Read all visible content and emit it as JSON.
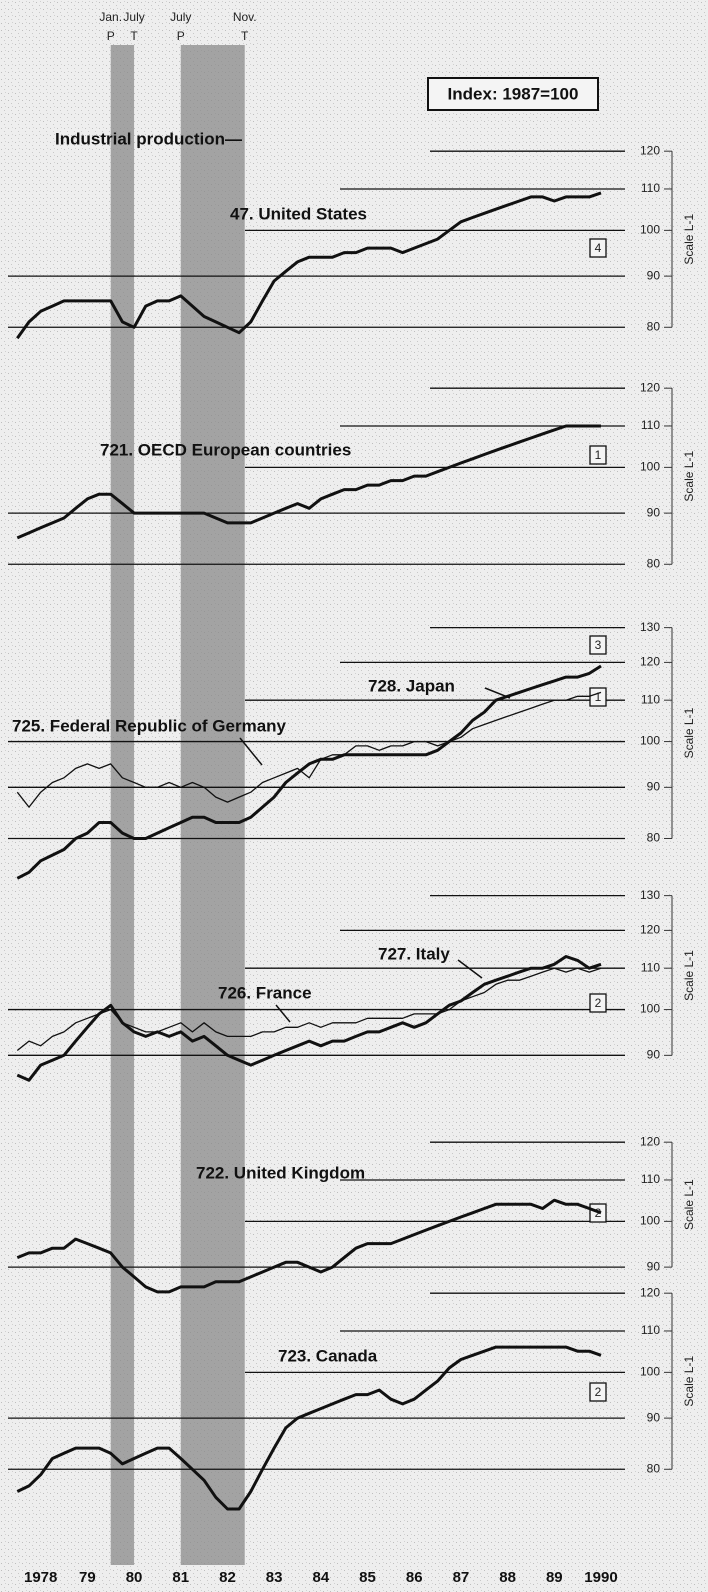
{
  "header": {
    "title": "Industrial production—",
    "index_note": "Index: 1987=100"
  },
  "x_axis": {
    "xlim": [
      1977.8,
      1990.8
    ],
    "xticks": [
      1978,
      {
        "value": 1979,
        "label": "79"
      },
      {
        "value": 1980,
        "label": "80"
      },
      {
        "value": 1981,
        "label": "81"
      },
      {
        "value": 1982,
        "label": "82"
      },
      {
        "value": 1983,
        "label": "83"
      },
      {
        "value": 1984,
        "label": "84"
      },
      {
        "value": 1985,
        "label": "85"
      },
      {
        "value": 1986,
        "label": "86"
      },
      {
        "value": 1987,
        "label": "87"
      },
      {
        "value": 1988,
        "label": "88"
      },
      {
        "value": 1989,
        "label": "89"
      },
      1990
    ],
    "recessions": [
      {
        "start": 1980.0,
        "end": 1980.5,
        "start_month": "Jan.",
        "start_code": "P",
        "end_month": "July",
        "end_code": "T"
      },
      {
        "start": 1981.5,
        "end": 1982.87,
        "start_month": "July",
        "start_code": "P",
        "end_month": "Nov.",
        "end_code": "T"
      }
    ],
    "x": [
      1978,
      1978.25,
      1978.5,
      1978.75,
      1979,
      1979.25,
      1979.5,
      1979.75,
      1980,
      1980.25,
      1980.5,
      1980.75,
      1981,
      1981.25,
      1981.5,
      1981.75,
      1982,
      1982.25,
      1982.5,
      1982.75,
      1983,
      1983.25,
      1983.5,
      1983.75,
      1984,
      1984.25,
      1984.5,
      1984.75,
      1985,
      1985.25,
      1985.5,
      1985.75,
      1986,
      1986.25,
      1986.5,
      1986.75,
      1987,
      1987.25,
      1987.5,
      1987.75,
      1988,
      1988.25,
      1988.5,
      1988.75,
      1989,
      1989.25,
      1989.5,
      1989.75,
      1990,
      1990.25,
      1990.5
    ]
  },
  "chart_data": [
    {
      "type": "line",
      "log_scale": true,
      "y_axis_label": "Scale L-1",
      "ylim": [
        76,
        122
      ],
      "yticks": [
        80,
        90,
        100,
        110,
        120
      ],
      "lag_codes": [
        "4"
      ],
      "series": [
        {
          "name": "47. United States",
          "color": "#111111",
          "line_width": "thick",
          "values": [
            78,
            81,
            83,
            84,
            85,
            85,
            85,
            85,
            85,
            81,
            80,
            84,
            85,
            85,
            86,
            84,
            82,
            81,
            80,
            79,
            81,
            85,
            89,
            91,
            93,
            94,
            94,
            94,
            95,
            95,
            96,
            96,
            96,
            95,
            96,
            97,
            98,
            100,
            102,
            103,
            104,
            105,
            106,
            107,
            108,
            108,
            107,
            108,
            108,
            108,
            109
          ]
        }
      ]
    },
    {
      "type": "line",
      "log_scale": true,
      "y_axis_label": "Scale L-1",
      "ylim": [
        83,
        122
      ],
      "yticks": [
        80,
        90,
        100,
        110,
        120
      ],
      "lag_codes": [
        "1"
      ],
      "series": [
        {
          "name": "721. OECD European countries",
          "color": "#111111",
          "line_width": "thick",
          "values": [
            85,
            86,
            87,
            88,
            89,
            91,
            93,
            94,
            94,
            92,
            90,
            90,
            90,
            90,
            90,
            90,
            90,
            89,
            88,
            88,
            88,
            89,
            90,
            91,
            92,
            91,
            93,
            94,
            95,
            95,
            96,
            96,
            97,
            97,
            98,
            98,
            99,
            100,
            101,
            102,
            103,
            104,
            105,
            106,
            107,
            108,
            109,
            110,
            110,
            110,
            110
          ]
        }
      ]
    },
    {
      "type": "line",
      "log_scale": true,
      "y_axis_label": "Scale L-1",
      "ylim": [
        72,
        132
      ],
      "yticks": [
        80,
        90,
        100,
        110,
        120,
        130
      ],
      "lag_codes": [
        "3",
        "1"
      ],
      "series": [
        {
          "name": "728. Japan",
          "color": "#111111",
          "line_width": "thick",
          "values": [
            73,
            74,
            76,
            77,
            78,
            80,
            81,
            83,
            83,
            81,
            80,
            80,
            81,
            82,
            83,
            84,
            84,
            83,
            83,
            83,
            84,
            86,
            88,
            91,
            93,
            95,
            96,
            96,
            97,
            97,
            97,
            97,
            97,
            97,
            97,
            97,
            98,
            100,
            102,
            105,
            107,
            110,
            111,
            112,
            113,
            114,
            115,
            116,
            116,
            117,
            119
          ]
        },
        {
          "name": "725. Federal Republic of Germany",
          "color": "#111111",
          "line_width": "thin",
          "values": [
            89,
            86,
            89,
            91,
            92,
            94,
            95,
            94,
            95,
            92,
            91,
            90,
            90,
            91,
            90,
            91,
            90,
            88,
            87,
            88,
            89,
            91,
            92,
            93,
            94,
            92,
            96,
            97,
            97,
            99,
            99,
            98,
            99,
            99,
            100,
            100,
            99,
            100,
            101,
            103,
            104,
            105,
            106,
            107,
            108,
            109,
            110,
            110,
            111,
            111,
            112
          ]
        }
      ]
    },
    {
      "type": "line",
      "log_scale": true,
      "y_axis_label": "Scale L-1",
      "ylim": [
        84,
        132
      ],
      "yticks": [
        90,
        100,
        110,
        120,
        130
      ],
      "lag_codes": [
        "2"
      ],
      "series": [
        {
          "name": "727. Italy",
          "color": "#111111",
          "line_width": "thick",
          "values": [
            86,
            85,
            88,
            89,
            90,
            93,
            96,
            99,
            101,
            97,
            95,
            94,
            95,
            94,
            95,
            93,
            94,
            92,
            90,
            89,
            88,
            89,
            90,
            91,
            92,
            93,
            92,
            93,
            93,
            94,
            95,
            95,
            96,
            97,
            96,
            97,
            99,
            101,
            102,
            104,
            106,
            107,
            108,
            109,
            110,
            110,
            111,
            113,
            112,
            110,
            111
          ]
        },
        {
          "name": "726. France",
          "color": "#111111",
          "line_width": "thin",
          "values": [
            91,
            93,
            92,
            94,
            95,
            97,
            98,
            99,
            100,
            97,
            96,
            95,
            95,
            96,
            97,
            95,
            97,
            95,
            94,
            94,
            94,
            95,
            95,
            96,
            96,
            97,
            96,
            97,
            97,
            97,
            98,
            98,
            98,
            98,
            99,
            99,
            99,
            100,
            102,
            103,
            104,
            106,
            107,
            107,
            108,
            109,
            110,
            109,
            110,
            109,
            110
          ]
        }
      ]
    },
    {
      "type": "line",
      "log_scale": true,
      "y_axis_label": "Scale L-1",
      "ylim": [
        83,
        122
      ],
      "yticks": [
        90,
        100,
        110,
        120
      ],
      "lag_codes": [
        "2"
      ],
      "series": [
        {
          "name": "722. United Kingdom",
          "color": "#111111",
          "line_width": "thick",
          "values": [
            92,
            93,
            93,
            94,
            94,
            96,
            95,
            94,
            93,
            90,
            88,
            86,
            85,
            85,
            86,
            86,
            86,
            87,
            87,
            87,
            88,
            89,
            90,
            91,
            91,
            90,
            89,
            90,
            92,
            94,
            95,
            95,
            95,
            96,
            97,
            98,
            99,
            100,
            101,
            102,
            103,
            104,
            104,
            104,
            104,
            103,
            105,
            104,
            104,
            103,
            102
          ]
        }
      ]
    },
    {
      "type": "line",
      "log_scale": true,
      "y_axis_label": "Scale L-1",
      "ylim": [
        72,
        122
      ],
      "yticks": [
        80,
        90,
        100,
        110,
        120
      ],
      "lag_codes": [
        "2"
      ],
      "series": [
        {
          "name": "723. Canada",
          "color": "#111111",
          "line_width": "thick",
          "values": [
            76,
            77,
            79,
            82,
            83,
            84,
            84,
            84,
            83,
            81,
            82,
            83,
            84,
            84,
            82,
            80,
            78,
            75,
            73,
            73,
            76,
            80,
            84,
            88,
            90,
            91,
            92,
            93,
            94,
            95,
            95,
            96,
            94,
            93,
            94,
            96,
            98,
            101,
            103,
            104,
            105,
            106,
            106,
            106,
            106,
            106,
            106,
            106,
            105,
            105,
            104
          ]
        }
      ]
    }
  ]
}
